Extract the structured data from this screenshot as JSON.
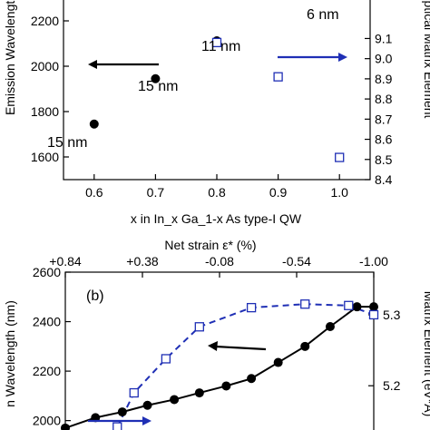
{
  "chart_data": [
    {
      "type": "scatter",
      "xlabel": "x in In_x Ga_1-x As type-I QW",
      "ylabel_left": "Emission Wavelength",
      "ylabel_right": "Optical Matrix Element",
      "xlim": [
        0.55,
        1.05
      ],
      "ylim_left": [
        1500,
        2300
      ],
      "ylim_right": [
        8.4,
        9.3
      ],
      "x_ticks": [
        "0.6",
        "0.7",
        "0.8",
        "0.9",
        "1.0"
      ],
      "y_ticks_left": [
        "1600",
        "1800",
        "2000",
        "2200"
      ],
      "y_ticks_right": [
        "8.4",
        "8.5",
        "8.6",
        "8.7",
        "8.8",
        "8.9",
        "9.0",
        "9.1"
      ],
      "series": [
        {
          "marker": "filled-circle",
          "axis": "left",
          "color": "#000000",
          "x": [
            0.6,
            0.7,
            0.8
          ],
          "y": [
            1745,
            1945,
            2112
          ]
        },
        {
          "marker": "open-square",
          "axis": "right",
          "color": "#1f2fb5",
          "x": [
            0.8,
            0.9,
            1.0
          ],
          "y": [
            9.08,
            8.91,
            8.51
          ]
        }
      ],
      "annotations": [
        "15 nm",
        "15 nm",
        "11 nm",
        "6 nm"
      ]
    },
    {
      "type": "line",
      "panel_label": "(b)",
      "xlabel_top": "Net strain ε* (%)",
      "ylabel_left": "n Wavelength (nm)",
      "ylabel_right": "Matrix Element (eV*A)",
      "top_ticks": [
        "+0.84",
        "+0.38",
        "-0.08",
        "-0.54",
        "-1.00"
      ],
      "top_tick_values": [
        0.84,
        0.38,
        -0.08,
        -0.54,
        -1.0
      ],
      "xlim": [
        0.84,
        -1.0
      ],
      "ylim_left": [
        1940,
        2600
      ],
      "ylim_right": [
        5.13,
        5.36
      ],
      "y_ticks_left": [
        "2000",
        "2200",
        "2400",
        "2600"
      ],
      "y_ticks_right": [
        "5.2",
        "5.3"
      ],
      "series": [
        {
          "marker": "filled-circle",
          "line": "solid",
          "axis": "left",
          "color": "#000000",
          "x": [
            0.84,
            0.66,
            0.5,
            0.35,
            0.19,
            0.04,
            -0.12,
            -0.27,
            -0.43,
            -0.59,
            -0.74,
            -0.9,
            -1.0
          ],
          "y": [
            1970,
            2012,
            2035,
            2062,
            2085,
            2112,
            2140,
            2170,
            2235,
            2300,
            2380,
            2460,
            2460
          ]
        },
        {
          "marker": "open-square",
          "line": "dashed",
          "axis": "right",
          "color": "#1f2fb5",
          "x": [
            0.53,
            0.43,
            0.24,
            0.04,
            -0.27,
            -0.59,
            -0.85,
            -1.0
          ],
          "y": [
            5.142,
            5.19,
            5.238,
            5.283,
            5.31,
            5.315,
            5.313,
            5.3
          ]
        }
      ]
    }
  ]
}
